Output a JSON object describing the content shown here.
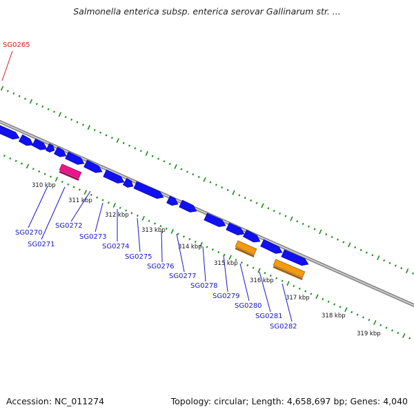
{
  "header": {
    "title": "Salmonella enterica subsp. enterica serovar Gallinarum str. ..."
  },
  "footer": {
    "accession": "Accession: NC_011274",
    "summary": "Topology: circular; Length: 4,658,697 bp; Genes: 4,040"
  },
  "map": {
    "kbp_ticks": [
      "310 kbp",
      "311 kbp",
      "312 kbp",
      "313 kbp",
      "314 kbp",
      "315 kbp",
      "316 kbp",
      "317 kbp",
      "318 kbp",
      "319 kbp"
    ],
    "gene_labels": [
      "SG0265",
      "SG0270",
      "SG0271",
      "SG0272",
      "SG0273",
      "SG0274",
      "SG0275",
      "SG0276",
      "SG0277",
      "SG0278",
      "SG0279",
      "SG0280",
      "SG0281",
      "SG0282"
    ],
    "colors": {
      "forward_gene": "#1010f0",
      "reverse_gene_magenta": "#f0148c",
      "reverse_gene_orange": "#f59a10",
      "backbone": "#888888",
      "tick": "#1a8a1a",
      "label_line": "#1515c8",
      "highlight_label": "#d81818"
    }
  }
}
